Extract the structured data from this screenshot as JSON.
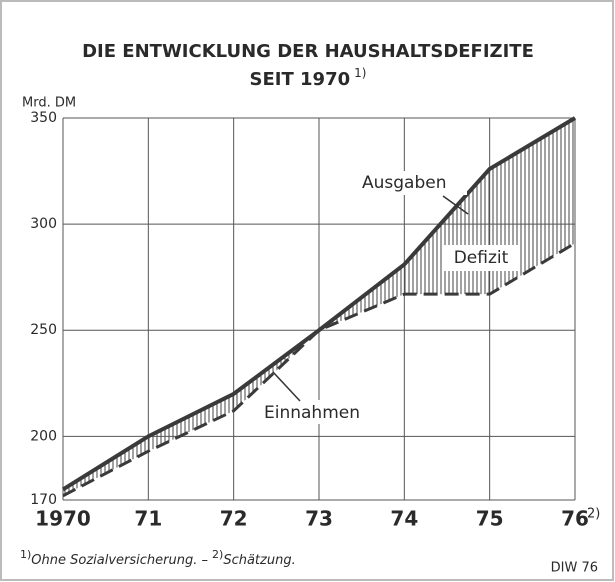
{
  "chart_data": {
    "type": "line",
    "title": [
      "DIE ENTWICKLUNG DER HAUSHALTSDEFIZITE",
      "SEIT 1970"
    ],
    "title_note": "1)",
    "y_label": "Mrd. DM",
    "categories": [
      "1970",
      "71",
      "72",
      "73",
      "74",
      "75",
      "76"
    ],
    "category_note": "2)",
    "series": [
      {
        "name": "Ausgaben",
        "color": "#3a3a3a",
        "dash": false,
        "values": [
          175,
          200,
          220,
          250,
          281,
          326,
          350
        ]
      },
      {
        "name": "Einnahmen",
        "color": "#3a3a3a",
        "dash": true,
        "values": [
          172,
          193,
          212,
          250,
          267,
          267,
          291
        ]
      }
    ],
    "area_label": "Defizit",
    "ylim": [
      170,
      350
    ],
    "yticks": [
      170,
      200,
      250,
      300,
      350
    ],
    "grid": true,
    "footnotes": [
      {
        "mark": "1)",
        "text": "Ohne Sozialversicherung. –"
      },
      {
        "mark": "2)",
        "text": "Schätzung."
      }
    ],
    "source": "DIW 76"
  }
}
